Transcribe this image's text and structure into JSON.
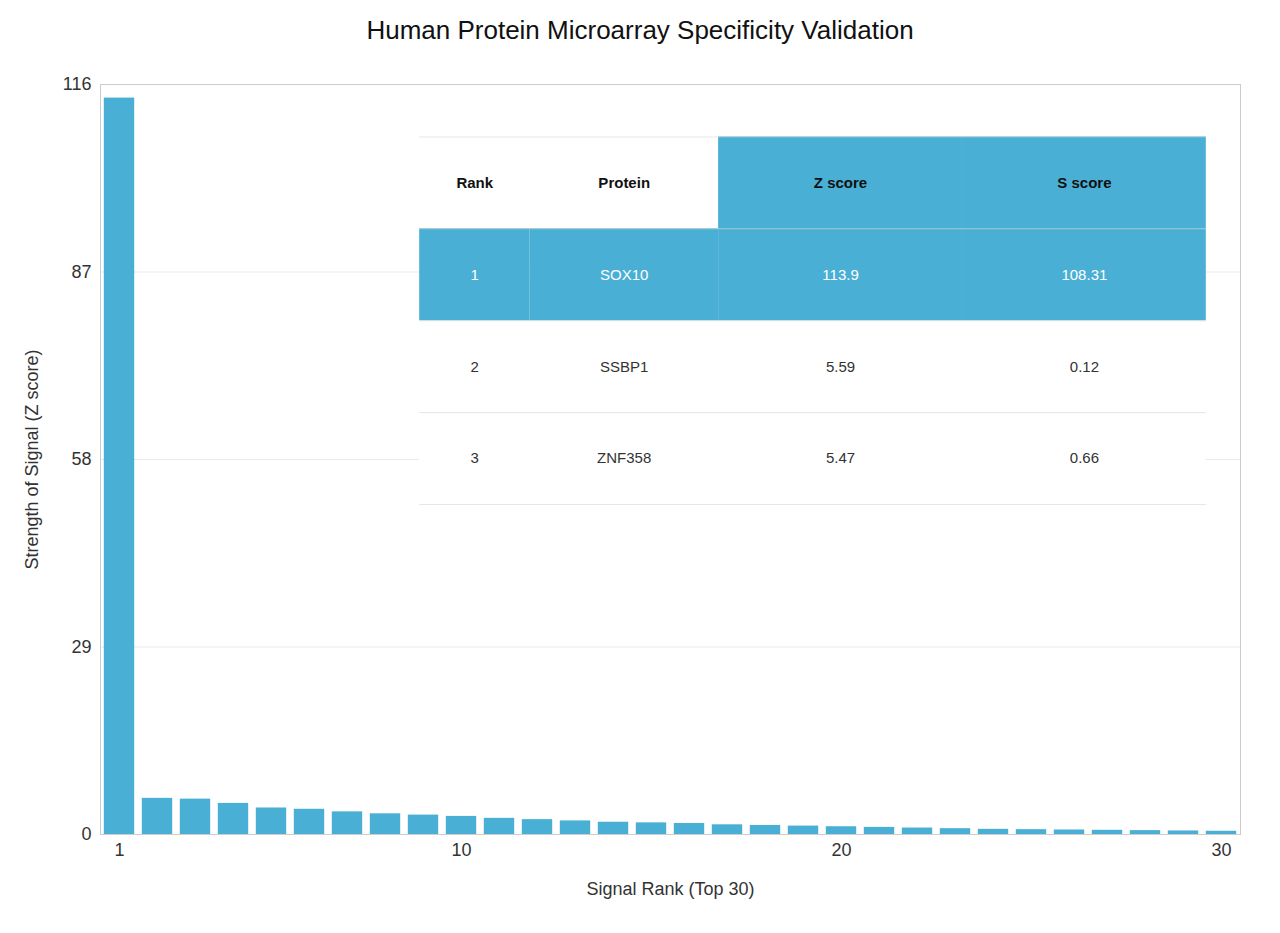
{
  "chart_data": {
    "type": "bar",
    "title": "Human Protein Microarray Specificity Validation",
    "xlabel": "Signal Rank (Top 30)",
    "ylabel": "Strength of Signal (Z score)",
    "x": [
      1,
      2,
      3,
      4,
      5,
      6,
      7,
      8,
      9,
      10,
      11,
      12,
      13,
      14,
      15,
      16,
      17,
      18,
      19,
      20,
      21,
      22,
      23,
      24,
      25,
      26,
      27,
      28,
      29,
      30
    ],
    "values": [
      113.9,
      5.59,
      5.47,
      4.81,
      4.1,
      3.9,
      3.5,
      3.2,
      3.0,
      2.8,
      2.5,
      2.3,
      2.1,
      1.9,
      1.8,
      1.7,
      1.5,
      1.4,
      1.3,
      1.2,
      1.1,
      1.0,
      0.9,
      0.8,
      0.75,
      0.7,
      0.65,
      0.6,
      0.55,
      0.5
    ],
    "color": "#4aafd5",
    "xlim": [
      0.5,
      30.5
    ],
    "ylim": [
      0,
      116
    ],
    "xticks": [
      1,
      10,
      20,
      30
    ],
    "yticks": [
      0,
      29,
      58,
      87,
      116
    ],
    "grid": true,
    "table": [
      [
        "Rank",
        "Protein",
        "Z score",
        "S score"
      ],
      [
        "1",
        "SOX10",
        "113.9",
        "108.31"
      ],
      [
        "2",
        "SSBP1",
        "5.59",
        "0.12"
      ],
      [
        "3",
        "ZNF358",
        "5.47",
        "0.66"
      ]
    ]
  }
}
